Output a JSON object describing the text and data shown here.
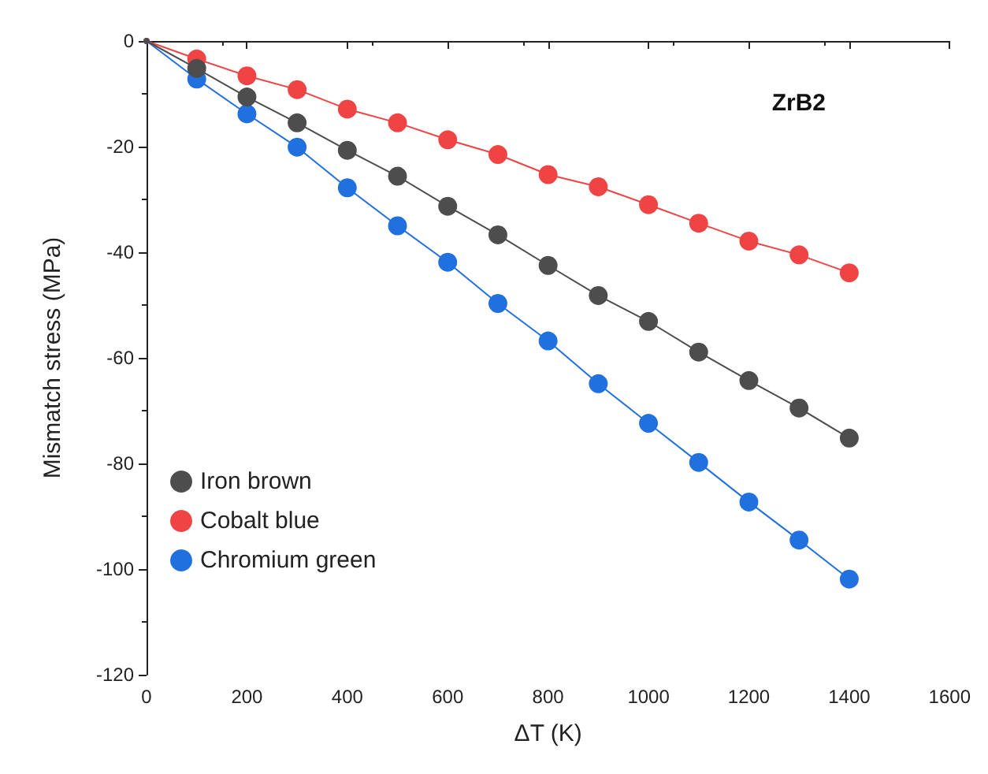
{
  "chart_data": {
    "type": "line",
    "xlabel": "ΔT (K)",
    "ylabel": "Mismatch stress (MPa)",
    "annotations": [
      "ZrB2"
    ],
    "x": [
      0,
      100,
      200,
      300,
      400,
      500,
      600,
      700,
      800,
      900,
      1000,
      1100,
      1200,
      1300,
      1400
    ],
    "series": [
      {
        "name": "Iron brown",
        "color": "#4d4d4d",
        "values": [
          0,
          -5.2,
          -10.6,
          -15.5,
          -20.7,
          -25.6,
          -31.3,
          -36.7,
          -42.5,
          -48.2,
          -53.1,
          -58.9,
          -64.3,
          -69.5,
          -75.2
        ]
      },
      {
        "name": "Cobalt blue",
        "color": "#f04343",
        "values": [
          0,
          -3.4,
          -6.6,
          -9.2,
          -12.9,
          -15.5,
          -18.7,
          -21.5,
          -25.3,
          -27.6,
          -31.0,
          -34.5,
          -37.9,
          -40.5,
          -43.9
        ]
      },
      {
        "name": "Chromium green",
        "color": "#2070e0",
        "values": [
          0,
          -7.2,
          -13.8,
          -20.1,
          -27.8,
          -35.0,
          -41.9,
          -49.7,
          -56.8,
          -64.9,
          -72.4,
          -79.8,
          -87.3,
          -94.5,
          -101.9
        ]
      }
    ],
    "xlim": [
      0,
      1600
    ],
    "xticks": [
      0,
      200,
      400,
      600,
      800,
      1000,
      1200,
      1400,
      1600
    ],
    "ylim": [
      -120,
      0
    ],
    "yticks": [
      -120,
      -100,
      -80,
      -60,
      -40,
      -20,
      0
    ],
    "grid": false,
    "legend": "left",
    "marker": "circle",
    "line_style": "solid"
  }
}
